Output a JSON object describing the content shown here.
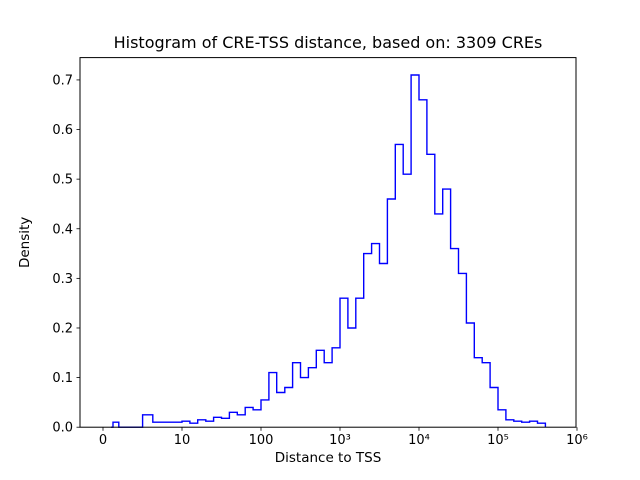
{
  "chart_data": {
    "type": "bar",
    "subtype": "step-histogram",
    "title": "Histogram of CRE-TSS distance, based on: 3309 CREs",
    "xlabel": "Distance to TSS",
    "ylabel": "Density",
    "n_cres": 3309,
    "line_color": "#0000ff",
    "axis_color": "#000000",
    "background_color": "#ffffff",
    "grid": "off",
    "legend": "none",
    "x_scale": "symlog",
    "x_linthresh": 10,
    "ylim": [
      0,
      0.745
    ],
    "x_ticks": [
      {
        "value": 0,
        "label": "0"
      },
      {
        "value": 10,
        "label": "10"
      },
      {
        "value": 100,
        "label": "100"
      },
      {
        "value": 1000,
        "label": "10³"
      },
      {
        "value": 10000,
        "label": "10⁴"
      },
      {
        "value": 100000,
        "label": "10⁵"
      },
      {
        "value": 1000000,
        "label": "10⁶"
      }
    ],
    "y_ticks": [
      {
        "value": 0.0,
        "label": "0.0"
      },
      {
        "value": 0.1,
        "label": "0.1"
      },
      {
        "value": 0.2,
        "label": "0.2"
      },
      {
        "value": 0.3,
        "label": "0.3"
      },
      {
        "value": 0.4,
        "label": "0.4"
      },
      {
        "value": 0.5,
        "label": "0.5"
      },
      {
        "value": 0.6,
        "label": "0.6"
      },
      {
        "value": 0.7,
        "label": "0.7"
      }
    ],
    "bin_edges": [
      1,
      1.26,
      1.58,
      2,
      2.51,
      3.16,
      3.98,
      5.01,
      6.31,
      7.94,
      10,
      12.6,
      15.8,
      20,
      25.1,
      31.6,
      39.8,
      50.1,
      63.1,
      79.4,
      100,
      126,
      158,
      200,
      251,
      316,
      398,
      501,
      631,
      794,
      1000,
      1259,
      1585,
      1995,
      2512,
      3162,
      3981,
      5012,
      6310,
      7943,
      10000,
      12589,
      15849,
      19953,
      25119,
      31623,
      39811,
      50119,
      63096,
      79433,
      100000,
      125893,
      158489,
      199526,
      251189,
      316228,
      398107
    ],
    "densities": [
      0,
      0.01,
      0.01,
      0,
      0,
      0,
      0,
      0.025,
      0.01,
      0.01,
      0.012,
      0.008,
      0.015,
      0.012,
      0.02,
      0.018,
      0.03,
      0.025,
      0.04,
      0.035,
      0.055,
      0.11,
      0.07,
      0.08,
      0.13,
      0.1,
      0.12,
      0.155,
      0.13,
      0.16,
      0.26,
      0.2,
      0.26,
      0.35,
      0.37,
      0.33,
      0.46,
      0.57,
      0.51,
      0.71,
      0.66,
      0.55,
      0.43,
      0.48,
      0.36,
      0.31,
      0.21,
      0.14,
      0.13,
      0.08,
      0.035,
      0.015,
      0.012,
      0.01,
      0.012,
      0.008
    ]
  }
}
